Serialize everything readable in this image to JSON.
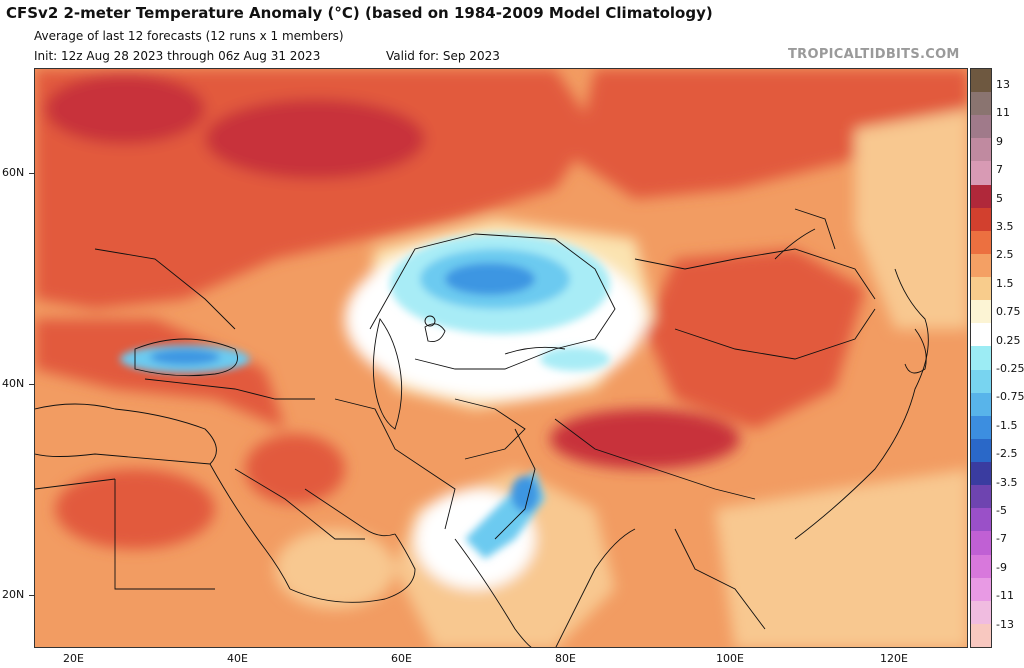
{
  "header": {
    "title": "CFSv2 2-meter Temperature Anomaly (°C) (based on 1984-2009 Model Climatology)",
    "subtitle": "Average of last 12 forecasts (12 runs x 1 members)",
    "init": "Init: 12z Aug 28 2023 through 06z Aug 31 2023",
    "valid": "Valid for: Sep 2023",
    "brand": "TROPICALTIDBITS.COM"
  },
  "axes": {
    "lat_labels": [
      "60N",
      "40N",
      "20N"
    ],
    "lon_labels": [
      "20E",
      "40E",
      "60E",
      "80E",
      "100E",
      "120E"
    ]
  },
  "colorbar": {
    "labels": [
      "13",
      "11",
      "9",
      "7",
      "5",
      "3.5",
      "2.5",
      "1.5",
      "0.75",
      "0.25",
      "-0.25",
      "-0.75",
      "-1.5",
      "-2.5",
      "-3.5",
      "-5",
      "-7",
      "-9",
      "-11",
      "-13"
    ],
    "colors": [
      "#6e5840",
      "#8a7470",
      "#a07a8a",
      "#c08aa0",
      "#d89ab4",
      "#b0283a",
      "#d2402e",
      "#ec7040",
      "#f4a064",
      "#f8cc8c",
      "#fcf4d4",
      "#ffffff",
      "#9cecf4",
      "#78d4f0",
      "#58b4ea",
      "#3c8ee0",
      "#2a68c8",
      "#3a3ca0",
      "#6e44b0",
      "#9a50c8",
      "#c060d4",
      "#d878dc",
      "#e89ae4",
      "#f0bce0",
      "#f8c8c0"
    ]
  },
  "map_colors": {
    "base": "#f29c62",
    "warm_dark": "#c8303a",
    "warm_mid": "#e25a3c",
    "warm_light": "#f8c890",
    "pale": "#fbe3b0",
    "neutral": "#ffffff",
    "cool_light": "#a8ecf6",
    "cool_mid": "#6ccaf0",
    "cool_dark": "#3e96e2",
    "border": "#111111"
  }
}
